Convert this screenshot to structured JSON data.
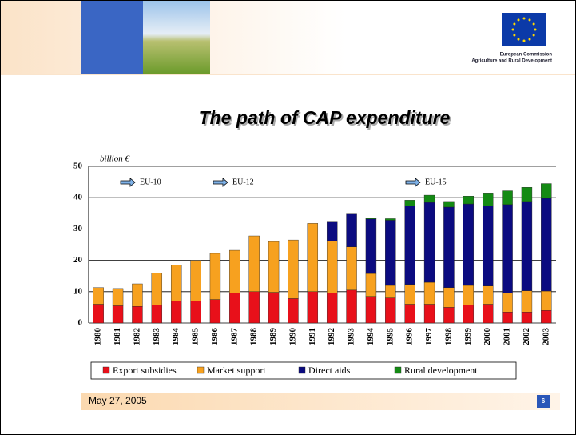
{
  "header": {
    "org": "European Commission",
    "dept": "Agriculture and Rural Development"
  },
  "footer": {
    "date": "May 27, 2005",
    "page": 6
  },
  "chart_data": {
    "type": "stacked_bar",
    "title": "The path of CAP expenditure",
    "y_label": "billion €",
    "categories": [
      "1980",
      "1981",
      "1982",
      "1983",
      "1984",
      "1985",
      "1986",
      "1987",
      "1988",
      "1989",
      "1990",
      "1991",
      "1992",
      "1993",
      "1994",
      "1995",
      "1996",
      "1997",
      "1998",
      "1999",
      "2000",
      "2001",
      "2002",
      "2003"
    ],
    "series": [
      {
        "name": "Export subsidies",
        "color": "#e8101a",
        "values": [
          6,
          5.5,
          5.3,
          5.8,
          7,
          7,
          7.5,
          9.5,
          10,
          9.8,
          7.8,
          10,
          9.5,
          10.5,
          8.5,
          8,
          6,
          6,
          5,
          5.8,
          6,
          3.5,
          3.5,
          4
        ]
      },
      {
        "name": "Market support",
        "color": "#f7a11f",
        "values": [
          5.3,
          5.5,
          7.2,
          10.2,
          11.5,
          13,
          14.7,
          13.7,
          17.8,
          16.2,
          18.7,
          21.8,
          16.7,
          13.8,
          7.3,
          4,
          6.3,
          7,
          6.3,
          6.2,
          5.8,
          6,
          6.8,
          6.2
        ]
      },
      {
        "name": "Direct aids",
        "color": "#0b0b80",
        "values": [
          null,
          null,
          null,
          null,
          null,
          null,
          null,
          null,
          null,
          null,
          null,
          null,
          6,
          10.7,
          17.4,
          20.8,
          25,
          25.5,
          25.7,
          26,
          25.5,
          28.3,
          28.5,
          29.6
        ]
      },
      {
        "name": "Rural development",
        "color": "#148a14",
        "values": [
          null,
          null,
          null,
          null,
          null,
          null,
          null,
          null,
          null,
          null,
          null,
          null,
          null,
          null,
          0.3,
          0.5,
          1.9,
          2.3,
          1.8,
          2.5,
          4.2,
          4.4,
          4.5,
          4.7
        ]
      }
    ],
    "ylim": [
      0,
      50
    ],
    "yticks": [
      0,
      10,
      20,
      30,
      40,
      50
    ],
    "grid": true,
    "legend": "bottom",
    "annotations": [
      "EU-10",
      "EU-12",
      "EU-15"
    ]
  }
}
